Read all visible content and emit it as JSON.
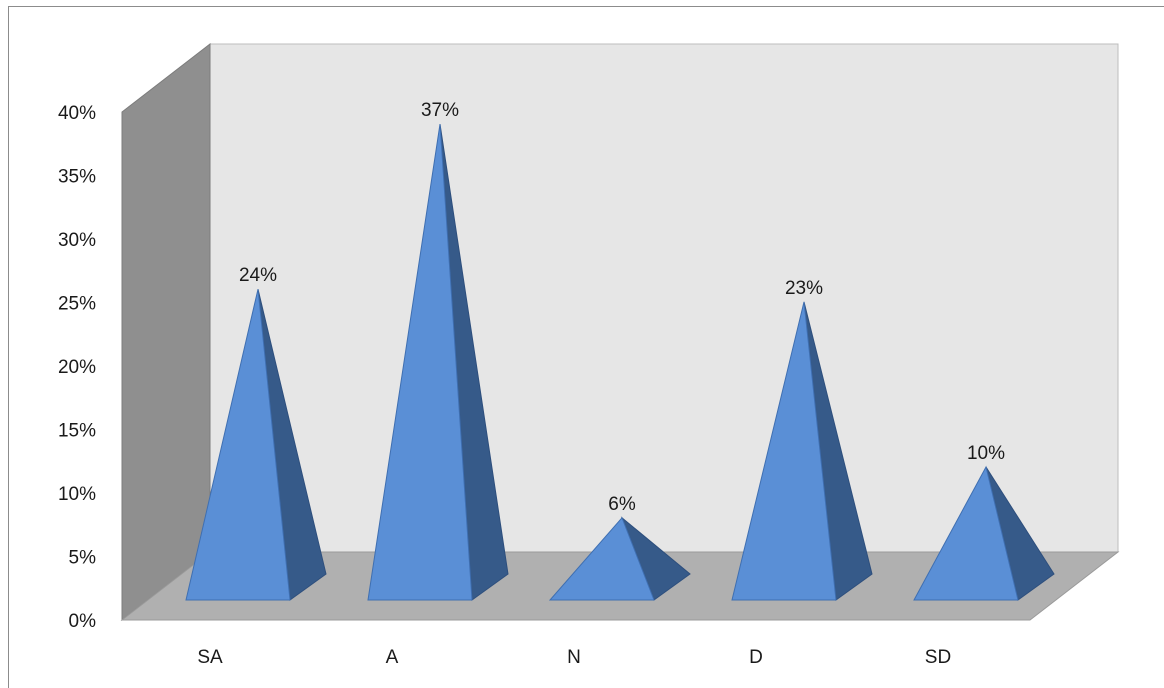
{
  "chart_data": {
    "type": "bar",
    "style": "3d-pyramid",
    "categories": [
      "SA",
      "A",
      "N",
      "D",
      "SD"
    ],
    "values": [
      24,
      37,
      6,
      23,
      10
    ],
    "data_labels": [
      "24%",
      "37%",
      "6%",
      "23%",
      "10%"
    ],
    "yticks": [
      "0%",
      "5%",
      "10%",
      "15%",
      "20%",
      "25%",
      "30%",
      "35%",
      "40%"
    ],
    "ylim": [
      0,
      40
    ],
    "grid": false,
    "legend": "none",
    "colors": {
      "pyramid_front": "#5a8fd6",
      "pyramid_side": "#365a89",
      "back_wall": "#e6e6e6",
      "side_wall": "#8f8f8f",
      "floor": "#b0b0b0"
    }
  }
}
